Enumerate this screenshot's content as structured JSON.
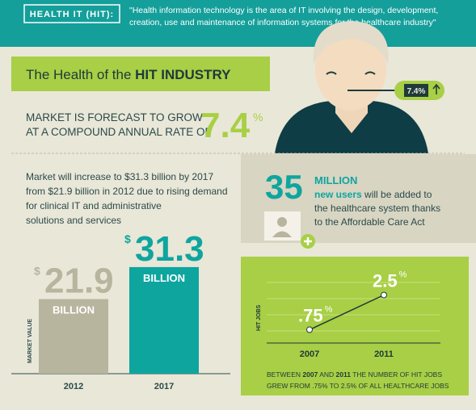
{
  "header": {
    "label": "HEALTH IT (HIT):",
    "quote_lines": [
      "\"Health information technology is the area of IT involving the design, development,",
      "creation, use and maintenance of information systems for the healthcare industry\""
    ]
  },
  "banner": {
    "title_plain": "The Health of the ",
    "title_bold": "HIT INDUSTRY"
  },
  "forecast": {
    "lines": [
      "MARKET IS FORECAST TO GROW",
      "AT A COMPOUND ANNUAL RATE OF"
    ],
    "rate": "7.4",
    "percent": "%",
    "thermometer": "7.4%"
  },
  "market": {
    "lines": [
      "Market will increase to $31.3 billion by 2017",
      "from $21.9 billion in 2012 due to rising demand",
      "for clinical IT and administrative",
      "solutions and services"
    ]
  },
  "users": {
    "number": "35",
    "unit": "MILLION",
    "highlight": "new users",
    "lines": [
      " will be added to",
      "the healthcare system thanks",
      "to the Affordable Care Act"
    ]
  },
  "chart_data": [
    {
      "type": "bar",
      "ylabel": "MARKET VALUE",
      "categories": [
        "2012",
        "2017"
      ],
      "values": [
        21.9,
        31.3
      ],
      "colors": [
        "#b7b59d",
        "#0ea59f"
      ],
      "currency_symbol": "$",
      "unit_label": "BILLION"
    },
    {
      "type": "line",
      "ylabel": "HIT JOBS",
      "categories": [
        "2007",
        "2011"
      ],
      "values": [
        0.75,
        2.5
      ],
      "value_labels": [
        ".75",
        "2.5"
      ],
      "unit_symbol": "%",
      "color": "#1e3a3a",
      "caption": {
        "line1": [
          "BETWEEN ",
          "2007",
          " AND ",
          "2011",
          " THE NUMBER OF HIT JOBS"
        ],
        "line2": "GREW FROM .75% TO 2.5% OF ALL HEALTHCARE JOBS"
      }
    }
  ]
}
